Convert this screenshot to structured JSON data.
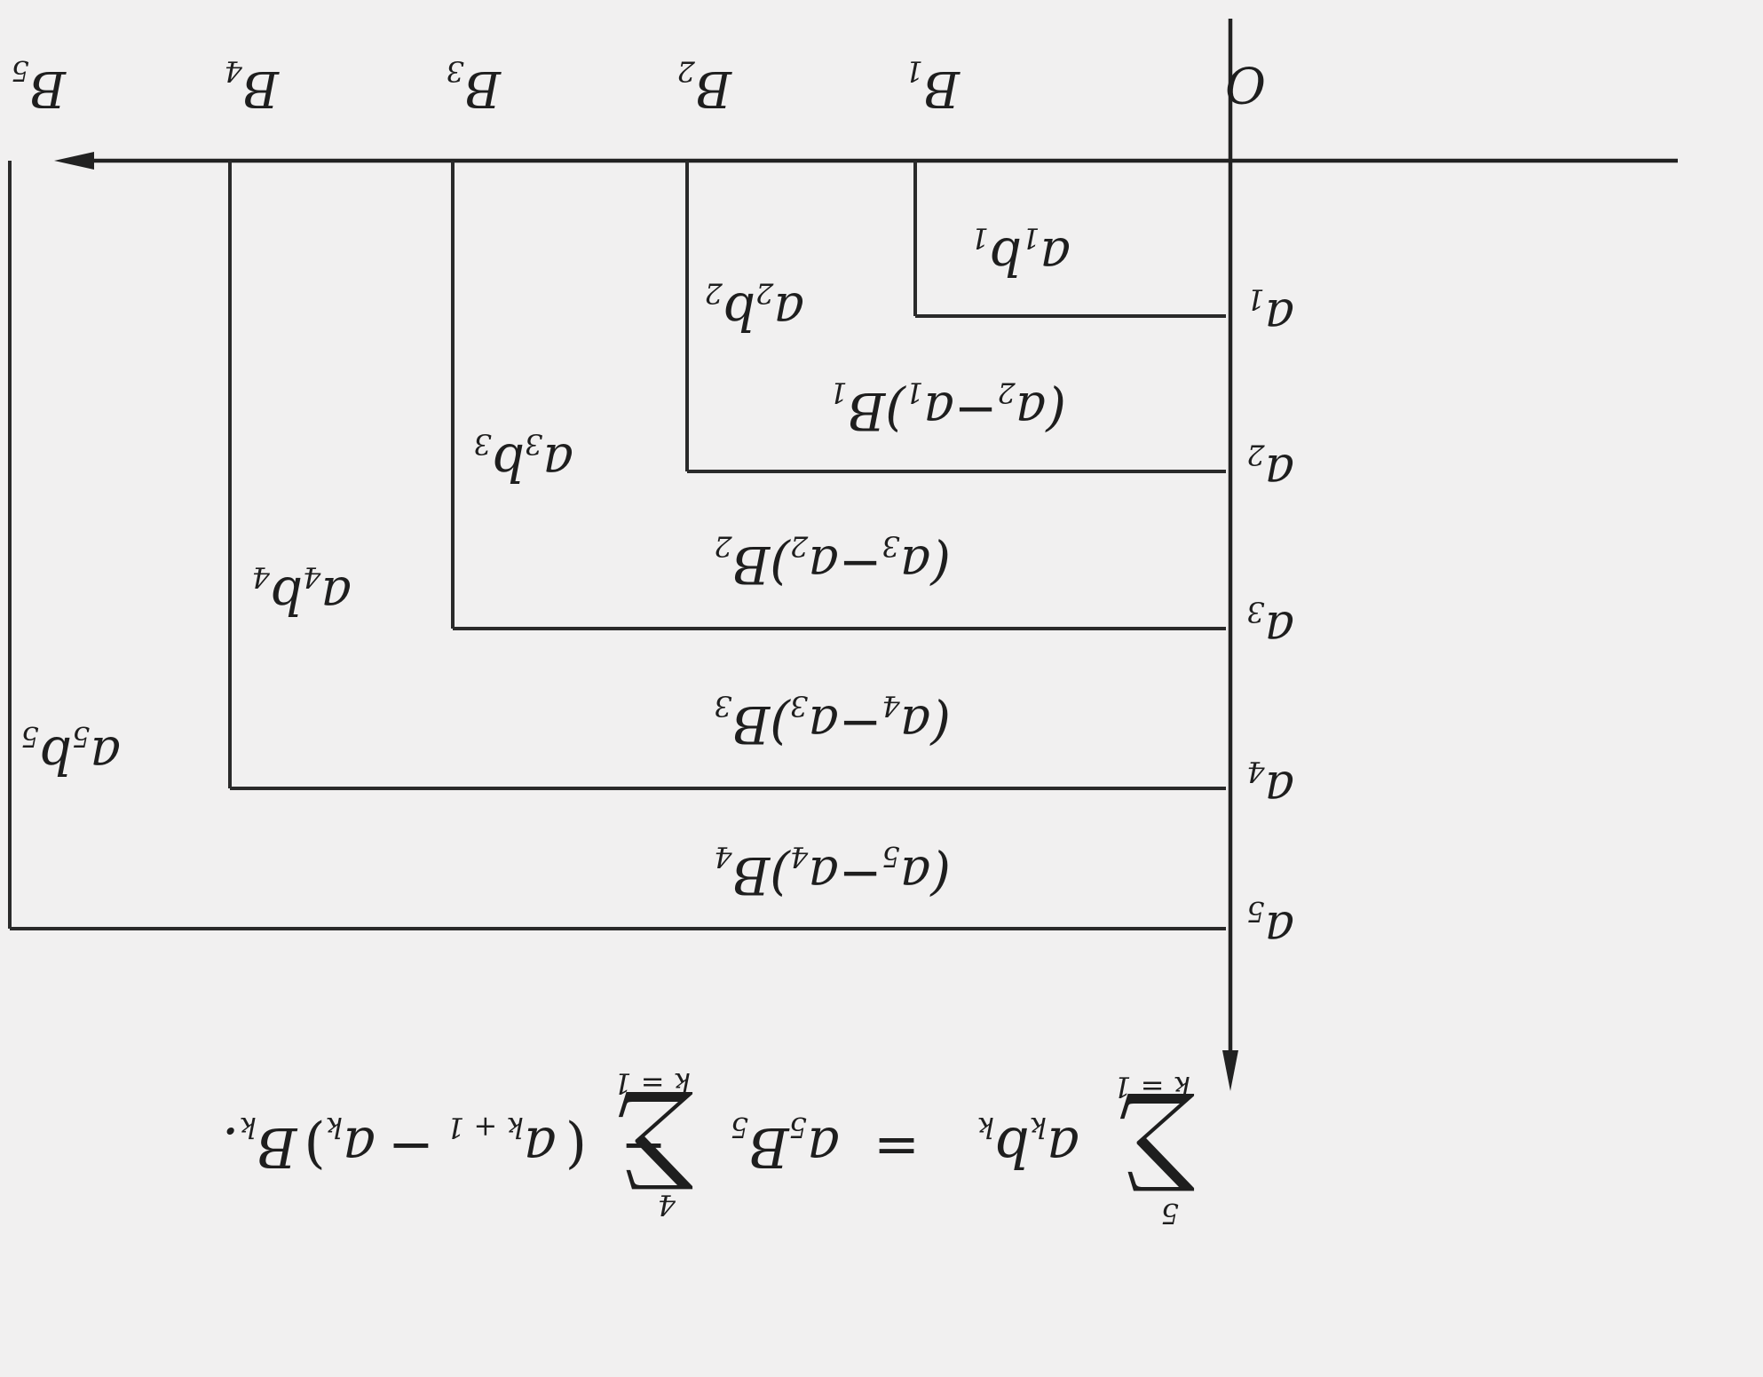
{
  "diagram": {
    "origin_label": "O",
    "b_axis_labels": [
      {
        "main": "B",
        "sub": "1"
      },
      {
        "main": "B",
        "sub": "2"
      },
      {
        "main": "B",
        "sub": "3"
      },
      {
        "main": "B",
        "sub": "4"
      },
      {
        "main": "B",
        "sub": "5"
      }
    ],
    "a_axis_labels": [
      {
        "main": "a",
        "sub": "1"
      },
      {
        "main": "a",
        "sub": "2"
      },
      {
        "main": "a",
        "sub": "3"
      },
      {
        "main": "a",
        "sub": "4"
      },
      {
        "main": "a",
        "sub": "5"
      }
    ],
    "column_cells": [
      {
        "a": "a",
        "as": "1",
        "b": "b",
        "bs": "1"
      },
      {
        "a": "a",
        "as": "2",
        "b": "b",
        "bs": "2"
      },
      {
        "a": "a",
        "as": "3",
        "b": "b",
        "bs": "3"
      },
      {
        "a": "a",
        "as": "4",
        "b": "b",
        "bs": "4"
      },
      {
        "a": "a",
        "as": "5",
        "b": "b",
        "bs": "5"
      }
    ],
    "row_cells": [
      {
        "open": "(a",
        "s1": "2",
        "minus": "−a",
        "s2": "1",
        "close": ")B",
        "s3": "1"
      },
      {
        "open": "(a",
        "s1": "3",
        "minus": "−a",
        "s2": "2",
        "close": ")B",
        "s3": "2"
      },
      {
        "open": "(a",
        "s1": "4",
        "minus": "−a",
        "s2": "3",
        "close": ")B",
        "s3": "3"
      },
      {
        "open": "(a",
        "s1": "5",
        "minus": "−a",
        "s2": "4",
        "close": ")B",
        "s3": "4"
      }
    ],
    "formula": {
      "sum1_top": "5",
      "sum1_bottom": "k = 1",
      "sigma": "∑",
      "term1": "a",
      "term1_sub": "k",
      "term1b": "b",
      "term1b_sub": "k",
      "equals": "=",
      "term2": "a",
      "term2_sub": "5",
      "term2b": "B",
      "term2b_sub": "5",
      "minus": "−",
      "sum2_top": "4",
      "sum2_bottom": "k = 1",
      "paren_open": "(",
      "term3": "a",
      "term3_sub": "k + 1",
      "minus2": "−",
      "term4": "a",
      "term4_sub": "k",
      "paren_close": ")",
      "term5": "B",
      "term5_sub": "k",
      "period": "."
    }
  }
}
